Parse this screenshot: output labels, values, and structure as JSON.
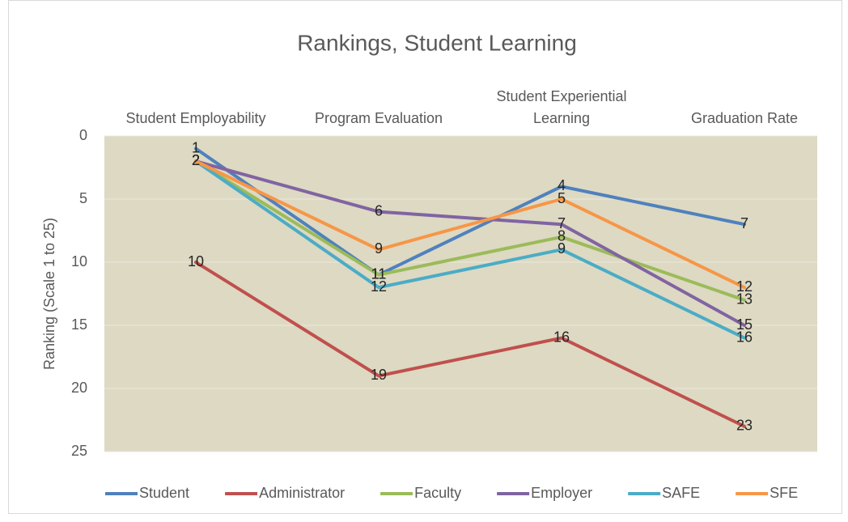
{
  "chart_data": {
    "type": "line",
    "title": "Rankings, Student Learning",
    "y_label": "Ranking (Scale 1 to 25)",
    "categories": [
      "Student Employability",
      "Program Evaluation",
      "Student Experiential Learning",
      "Graduation Rate"
    ],
    "ylim": [
      0,
      25
    ],
    "yticks": [
      0,
      5,
      10,
      15,
      20,
      25
    ],
    "y_inverted": true,
    "grid": true,
    "legend": "bottom",
    "series": [
      {
        "name": "Student",
        "color": "#4f81bd",
        "values": [
          1,
          11,
          4,
          7
        ]
      },
      {
        "name": "Administrator",
        "color": "#c0504d",
        "values": [
          10,
          19,
          16,
          23
        ]
      },
      {
        "name": "Faculty",
        "color": "#9bbb59",
        "values": [
          2,
          11,
          8,
          13
        ]
      },
      {
        "name": "Employer",
        "color": "#8064a2",
        "values": [
          2,
          6,
          7,
          15
        ]
      },
      {
        "name": "SAFE",
        "color": "#4bacc6",
        "values": [
          2,
          12,
          9,
          16
        ]
      },
      {
        "name": "SFE",
        "color": "#f79646",
        "values": [
          2,
          9,
          5,
          12
        ]
      }
    ]
  }
}
